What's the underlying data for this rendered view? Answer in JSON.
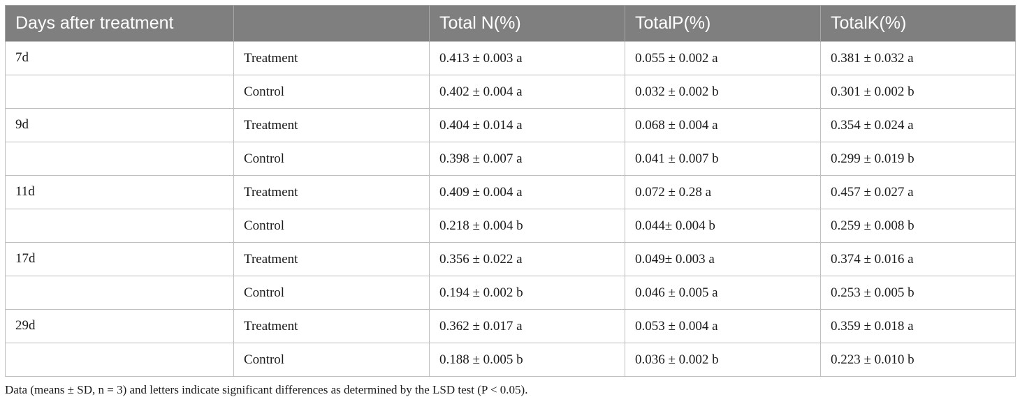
{
  "table": {
    "headers": [
      "Days after treatment",
      "",
      "Total N(%)",
      "TotalP(%)",
      "TotalK(%)"
    ],
    "rows": [
      {
        "day": "7d",
        "group": "Treatment",
        "n": "0.413 ± 0.003 a",
        "p": "0.055 ± 0.002 a",
        "k": "0.381 ± 0.032 a"
      },
      {
        "day": "",
        "group": "Control",
        "n": "0.402 ± 0.004 a",
        "p": "0.032 ± 0.002 b",
        "k": "0.301 ± 0.002 b"
      },
      {
        "day": "9d",
        "group": "Treatment",
        "n": "0.404 ± 0.014 a",
        "p": "0.068 ± 0.004 a",
        "k": "0.354 ± 0.024 a"
      },
      {
        "day": "",
        "group": "Control",
        "n": "0.398 ± 0.007 a",
        "p": "0.041 ± 0.007 b",
        "k": "0.299 ± 0.019 b"
      },
      {
        "day": "11d",
        "group": "Treatment",
        "n": "0.409 ± 0.004 a",
        "p": "0.072 ± 0.28 a",
        "k": "0.457 ± 0.027 a"
      },
      {
        "day": "",
        "group": "Control",
        "n": "0.218 ± 0.004 b",
        "p": "0.044± 0.004 b",
        "k": "0.259 ± 0.008 b"
      },
      {
        "day": "17d",
        "group": "Treatment",
        "n": "0.356 ± 0.022 a",
        "p": "0.049± 0.003 a",
        "k": "0.374 ± 0.016 a"
      },
      {
        "day": "",
        "group": "Control",
        "n": "0.194 ± 0.002 b",
        "p": "0.046 ± 0.005 a",
        "k": "0.253 ± 0.005 b"
      },
      {
        "day": "29d",
        "group": "Treatment",
        "n": "0.362 ± 0.017 a",
        "p": "0.053 ± 0.004 a",
        "k": "0.359 ± 0.018 a"
      },
      {
        "day": "",
        "group": "Control",
        "n": "0.188 ± 0.005 b",
        "p": "0.036 ± 0.002 b",
        "k": "0.223 ± 0.010 b"
      }
    ]
  },
  "footnote": "Data (means ± SD, n = 3) and letters indicate significant differences as determined by the LSD test (P < 0.05).",
  "colors": {
    "header_bg": "#7f7f7f",
    "header_text": "#ffffff",
    "grid": "#bfbfbf"
  }
}
